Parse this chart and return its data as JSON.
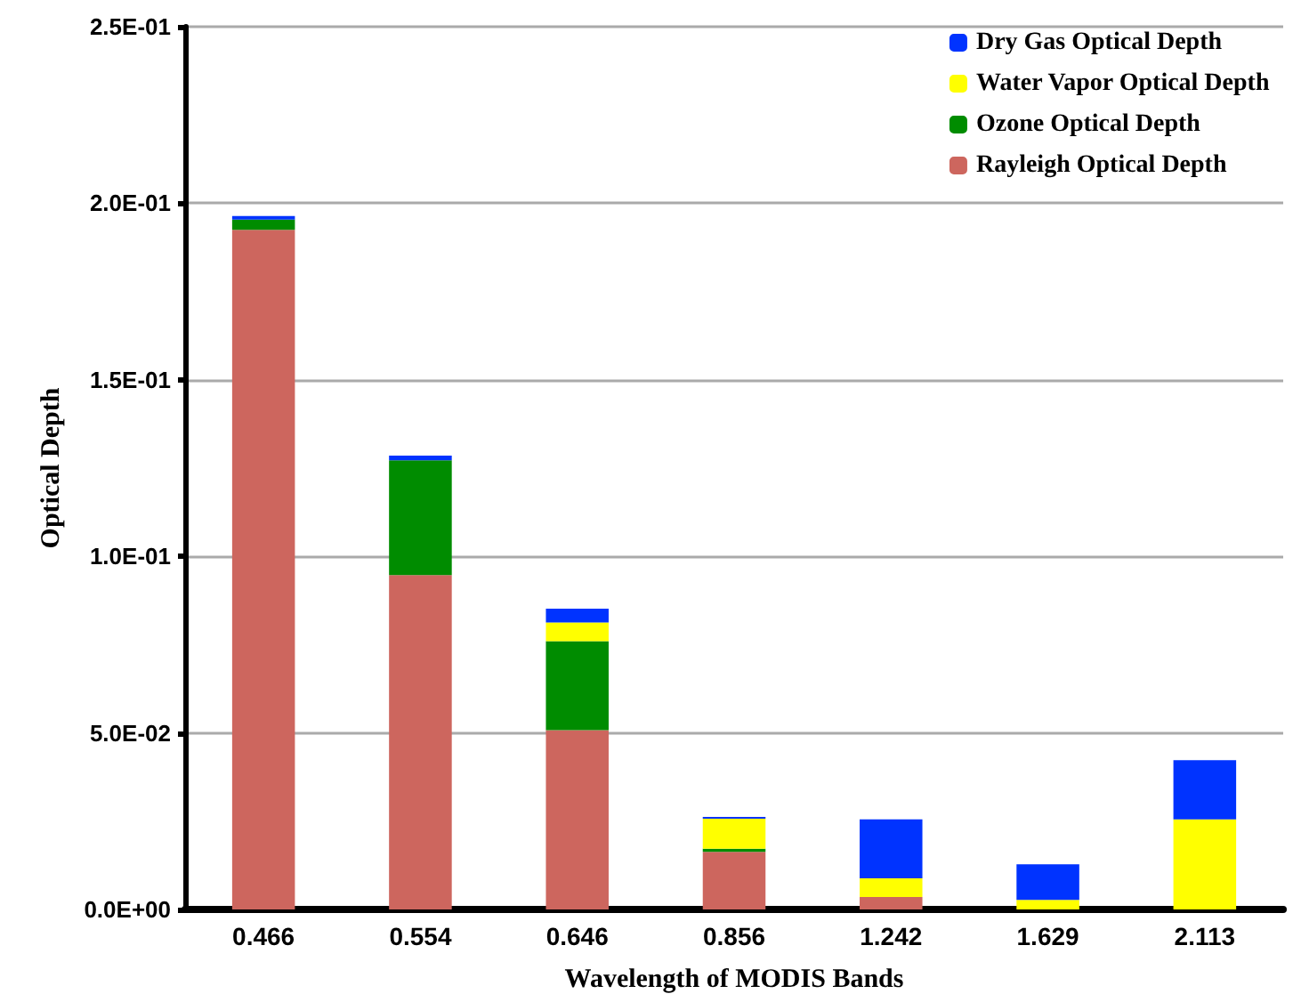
{
  "chart_data": {
    "type": "bar",
    "stacked": true,
    "xlabel": "Wavelength of MODIS Bands",
    "ylabel": "Optical Depth",
    "categories": [
      "0.466",
      "0.554",
      "0.646",
      "0.856",
      "1.242",
      "1.629",
      "2.113"
    ],
    "series": [
      {
        "name": "Rayleigh Optical Depth",
        "color": "#cd665e",
        "values": [
          0.1925,
          0.0947,
          0.0508,
          0.0163,
          0.0035,
          0,
          0
        ]
      },
      {
        "name": "Ozone Optical Depth",
        "color": "#008c00",
        "values": [
          0.0029,
          0.0325,
          0.0252,
          0.0009,
          0,
          0,
          0
        ]
      },
      {
        "name": "Water Vapor Optical Depth",
        "color": "#ffff00",
        "values": [
          0,
          0,
          0.0053,
          0.0085,
          0.0053,
          0.0027,
          0.0255
        ]
      },
      {
        "name": "Dry Gas Optical Depth",
        "color": "#0033ff",
        "values": [
          0.001,
          0.0013,
          0.0039,
          0.0005,
          0.0167,
          0.0101,
          0.0168
        ]
      }
    ],
    "ylim": [
      0,
      0.25
    ],
    "yticks": [
      {
        "value": 0,
        "label": "0.0E+00"
      },
      {
        "value": 0.05,
        "label": "5.0E-02"
      },
      {
        "value": 0.1,
        "label": "1.0E-01"
      },
      {
        "value": 0.15,
        "label": "1.5E-01"
      },
      {
        "value": 0.2,
        "label": "2.0E-01"
      },
      {
        "value": 0.25,
        "label": "2.5E-01"
      }
    ],
    "grid": "y",
    "legend": "top right"
  }
}
